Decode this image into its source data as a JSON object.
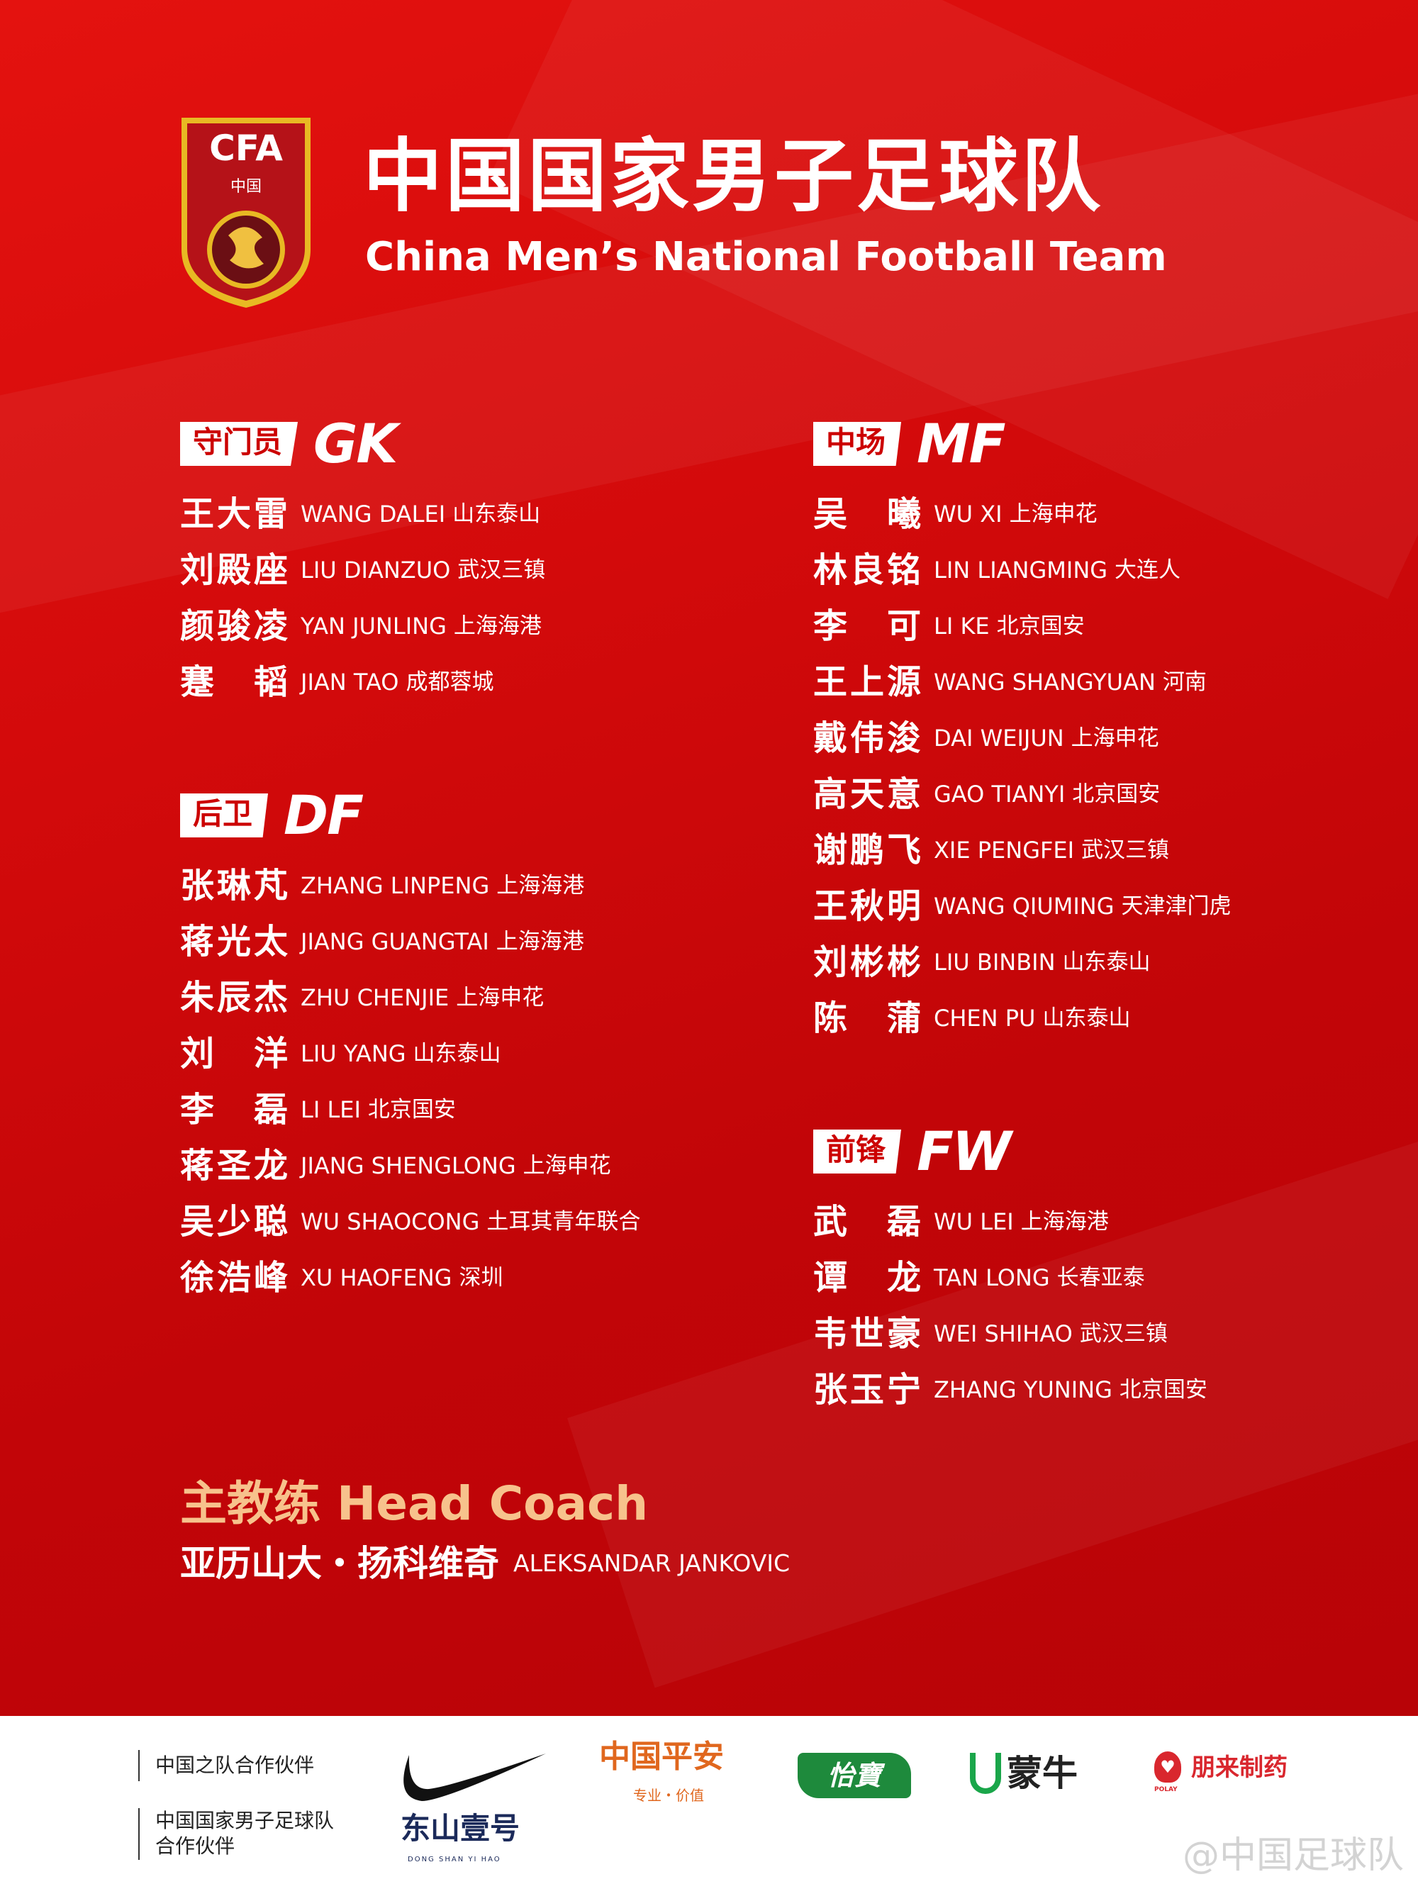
{
  "header": {
    "title_cn": "中国国家男子足球队",
    "title_en": "China Men’s National Football Team",
    "logo_text": "CFA",
    "logo_sub": "中国"
  },
  "sections": {
    "gk": {
      "label": "守门员",
      "code": "GK",
      "players": [
        {
          "cn": "王大雷",
          "en": "WANG DALEI",
          "club": "山东泰山"
        },
        {
          "cn": "刘殿座",
          "en": "LIU DIANZUO",
          "club": "武汉三镇"
        },
        {
          "cn": "颜骏凌",
          "en": "YAN JUNLING",
          "club": "上海海港"
        },
        {
          "cn": "蹇韬",
          "en": "JIAN TAO",
          "club": "成都蓉城"
        }
      ]
    },
    "df": {
      "label": "后卫",
      "code": "DF",
      "players": [
        {
          "cn": "张琳芃",
          "en": "ZHANG LINPENG",
          "club": "上海海港"
        },
        {
          "cn": "蒋光太",
          "en": "JIANG GUANGTAI",
          "club": "上海海港"
        },
        {
          "cn": "朱辰杰",
          "en": "ZHU CHENJIE",
          "club": "上海申花"
        },
        {
          "cn": "刘洋",
          "en": "LIU YANG",
          "club": "山东泰山"
        },
        {
          "cn": "李磊",
          "en": "LI LEI",
          "club": "北京国安"
        },
        {
          "cn": "蒋圣龙",
          "en": "JIANG SHENGLONG",
          "club": "上海申花"
        },
        {
          "cn": "吴少聪",
          "en": "WU SHAOCONG",
          "club": "土耳其青年联合"
        },
        {
          "cn": "徐浩峰",
          "en": "XU HAOFENG",
          "club": "深圳"
        }
      ]
    },
    "mf": {
      "label": "中场",
      "code": "MF",
      "players": [
        {
          "cn": "吴曦",
          "en": "WU XI",
          "club": "上海申花"
        },
        {
          "cn": "林良铭",
          "en": "LIN LIANGMING",
          "club": "大连人"
        },
        {
          "cn": "李可",
          "en": "LI KE",
          "club": "北京国安"
        },
        {
          "cn": "王上源",
          "en": "WANG SHANGYUAN",
          "club": "河南"
        },
        {
          "cn": "戴伟浚",
          "en": "DAI WEIJUN",
          "club": "上海申花"
        },
        {
          "cn": "高天意",
          "en": "GAO TIANYI",
          "club": "北京国安"
        },
        {
          "cn": "谢鹏飞",
          "en": "XIE PENGFEI",
          "club": "武汉三镇"
        },
        {
          "cn": "王秋明",
          "en": "WANG QIUMING",
          "club": "天津津门虎"
        },
        {
          "cn": "刘彬彬",
          "en": "LIU BINBIN",
          "club": "山东泰山"
        },
        {
          "cn": "陈蒲",
          "en": "CHEN PU",
          "club": "山东泰山"
        }
      ]
    },
    "fw": {
      "label": "前锋",
      "code": "FW",
      "players": [
        {
          "cn": "武磊",
          "en": "WU LEI",
          "club": "上海海港"
        },
        {
          "cn": "谭龙",
          "en": "TAN LONG",
          "club": "长春亚泰"
        },
        {
          "cn": "韦世豪",
          "en": "WEI SHIHAO",
          "club": "武汉三镇"
        },
        {
          "cn": "张玉宁",
          "en": "ZHANG YUNING",
          "club": "北京国安"
        }
      ]
    }
  },
  "coach": {
    "title": "主教练 Head Coach",
    "name_cn": "亚历山大・扬科维奇",
    "name_en": "ALEKSANDAR JANKOVIC"
  },
  "footer": {
    "label1": "中国之队合作伙伴",
    "label2a": "中国国家男子足球队",
    "label2b": "合作伙伴",
    "sponsors": {
      "pingan": "中国平安",
      "pingan_sub": "专业・价值",
      "yibao": "怡寶",
      "mengniu": "蒙牛",
      "polay": "朋来制药",
      "polay_sub": "POLAY",
      "dongshan": "东山壹号",
      "dongshan_sub": "DONG SHAN YI HAO"
    },
    "watermark": "@中国足球队"
  },
  "colors": {
    "background": "#d30a0b",
    "coach_title": "#f7c28c",
    "pingan": "#e0671e",
    "yibao": "#1e8a3c",
    "mengniu": "#1aa64a",
    "polay": "#d9272e",
    "dongshan": "#1b2a5a"
  }
}
